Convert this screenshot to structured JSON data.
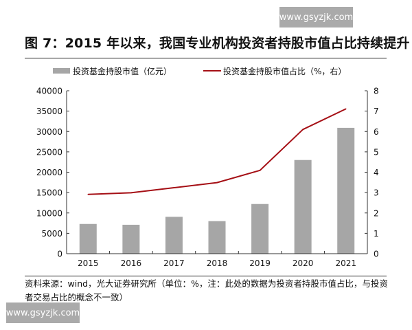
{
  "watermark": "www.gsyzjk.com",
  "title": "图 7：2015 年以来，我国专业机构投资者持股市值占比持续提升",
  "note": "资料来源：wind，光大证券研究所（单位：%，注：此处的数据为投资者持股市值占比，与投资者交易占比的概念不一致）",
  "chart_data": {
    "type": "bar+line",
    "categories": [
      "2015",
      "2016",
      "2017",
      "2018",
      "2019",
      "2020",
      "2021"
    ],
    "series": [
      {
        "name": "投资基金持股市值（亿元）",
        "type": "bar",
        "axis": "left",
        "color": "#a6a6a6",
        "values": [
          7300,
          7100,
          9050,
          8000,
          12200,
          23000,
          30900
        ]
      },
      {
        "name": "投资基金持股市值占比（%，右）",
        "type": "line",
        "axis": "right",
        "color": "#a50f15",
        "values": [
          2.91,
          2.99,
          3.24,
          3.49,
          4.09,
          6.1,
          7.11
        ]
      }
    ],
    "y_left": {
      "lim": [
        0,
        40000
      ],
      "ticks": [
        "0",
        "5000",
        "10000",
        "15000",
        "20000",
        "25000",
        "30000",
        "35000",
        "40000"
      ]
    },
    "y_right": {
      "lim": [
        0,
        8
      ],
      "ticks": [
        "0",
        "1",
        "2",
        "3",
        "4",
        "5",
        "6",
        "7",
        "8"
      ]
    },
    "grid": false,
    "legend": "top"
  }
}
